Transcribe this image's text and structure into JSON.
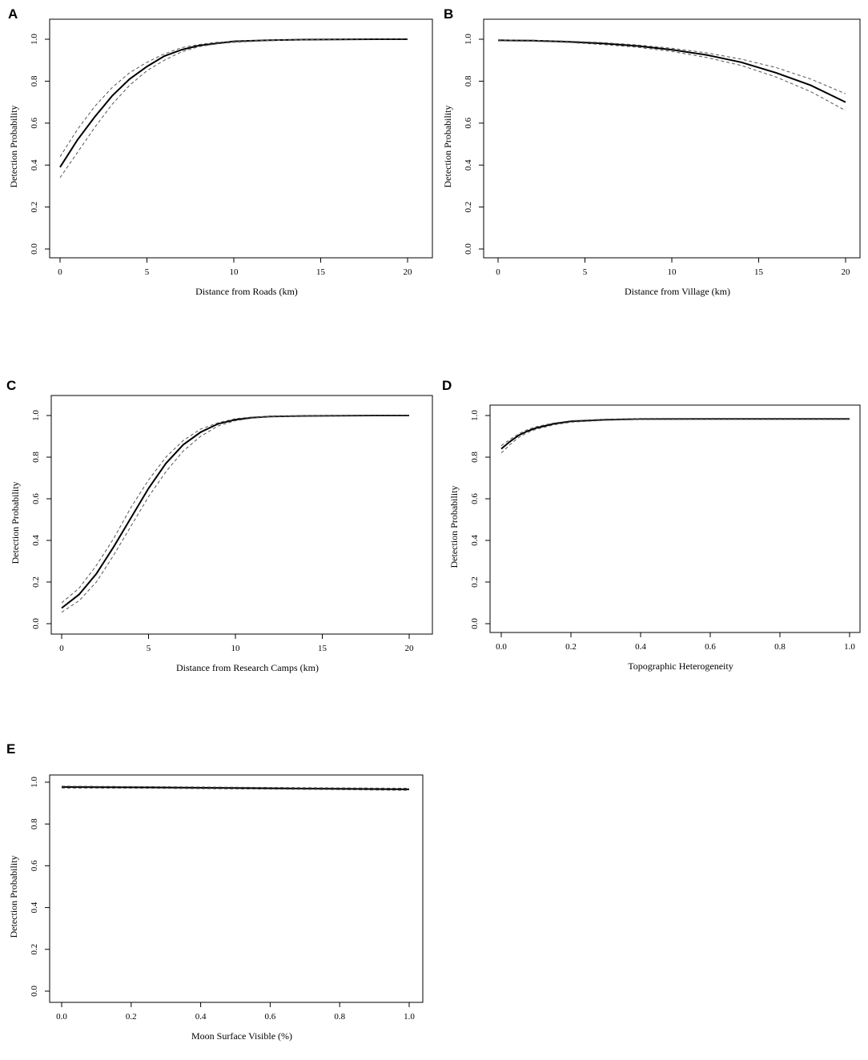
{
  "chart_data": [
    {
      "type": "line",
      "panel_label": "A",
      "xlabel": "Distance from Roads (km)",
      "ylabel": "Detection Probability",
      "xlim": [
        0,
        20
      ],
      "ylim": [
        0,
        1
      ],
      "xticks": [
        0,
        5,
        10,
        15,
        20
      ],
      "xtick_labels": [
        "0",
        "5",
        "10",
        "15",
        "20"
      ],
      "yticks": [
        0,
        0.2,
        0.4,
        0.6,
        0.8,
        1.0
      ],
      "ytick_labels": [
        "0.0",
        "0.2",
        "0.4",
        "0.6",
        "0.8",
        "1.0"
      ],
      "x": [
        0,
        1,
        2,
        3,
        4,
        5,
        6,
        7,
        8,
        9,
        10,
        12,
        14,
        16,
        18,
        20
      ],
      "series": [
        {
          "role": "estimate",
          "style": "solid",
          "values": [
            0.39,
            0.52,
            0.63,
            0.73,
            0.81,
            0.87,
            0.92,
            0.95,
            0.97,
            0.98,
            0.99,
            0.995,
            0.998,
            0.999,
            1.0,
            1.0
          ]
        },
        {
          "role": "upper",
          "style": "dashed",
          "values": [
            0.44,
            0.57,
            0.68,
            0.77,
            0.84,
            0.89,
            0.93,
            0.96,
            0.975,
            0.985,
            0.99,
            0.996,
            0.998,
            0.999,
            1.0,
            1.0
          ]
        },
        {
          "role": "lower",
          "style": "dashed",
          "values": [
            0.34,
            0.46,
            0.58,
            0.69,
            0.78,
            0.85,
            0.9,
            0.94,
            0.965,
            0.978,
            0.985,
            0.993,
            0.997,
            0.999,
            1.0,
            1.0
          ]
        }
      ]
    },
    {
      "type": "line",
      "panel_label": "B",
      "xlabel": "Distance from Village (km)",
      "ylabel": "Detection Probability",
      "xlim": [
        0,
        20
      ],
      "ylim": [
        0,
        1
      ],
      "xticks": [
        0,
        5,
        10,
        15,
        20
      ],
      "xtick_labels": [
        "0",
        "5",
        "10",
        "15",
        "20"
      ],
      "yticks": [
        0,
        0.2,
        0.4,
        0.6,
        0.8,
        1.0
      ],
      "ytick_labels": [
        "0.0",
        "0.2",
        "0.4",
        "0.6",
        "0.8",
        "1.0"
      ],
      "x": [
        0,
        2,
        4,
        6,
        8,
        10,
        12,
        14,
        16,
        18,
        20
      ],
      "series": [
        {
          "role": "estimate",
          "style": "solid",
          "values": [
            0.995,
            0.993,
            0.988,
            0.98,
            0.968,
            0.95,
            0.925,
            0.89,
            0.84,
            0.78,
            0.7
          ]
        },
        {
          "role": "upper",
          "style": "dashed",
          "values": [
            0.997,
            0.995,
            0.991,
            0.984,
            0.973,
            0.957,
            0.935,
            0.905,
            0.865,
            0.81,
            0.74
          ]
        },
        {
          "role": "lower",
          "style": "dashed",
          "values": [
            0.992,
            0.99,
            0.985,
            0.975,
            0.962,
            0.942,
            0.913,
            0.875,
            0.82,
            0.75,
            0.66
          ]
        }
      ]
    },
    {
      "type": "line",
      "panel_label": "C",
      "xlabel": "Distance from Research Camps (km)",
      "ylabel": "Detection Probability",
      "xlim": [
        0,
        20
      ],
      "ylim": [
        0,
        1
      ],
      "xticks": [
        0,
        5,
        10,
        15,
        20
      ],
      "xtick_labels": [
        "0",
        "5",
        "10",
        "15",
        "20"
      ],
      "yticks": [
        0,
        0.2,
        0.4,
        0.6,
        0.8,
        1.0
      ],
      "ytick_labels": [
        "0.0",
        "0.2",
        "0.4",
        "0.6",
        "0.8",
        "1.0"
      ],
      "x": [
        0,
        1,
        2,
        3,
        4,
        5,
        6,
        7,
        8,
        9,
        10,
        11,
        12,
        14,
        16,
        18,
        20
      ],
      "series": [
        {
          "role": "estimate",
          "style": "solid",
          "values": [
            0.075,
            0.14,
            0.24,
            0.37,
            0.51,
            0.65,
            0.77,
            0.86,
            0.92,
            0.96,
            0.98,
            0.99,
            0.995,
            0.998,
            0.999,
            1.0,
            1.0
          ]
        },
        {
          "role": "upper",
          "style": "dashed",
          "values": [
            0.1,
            0.17,
            0.28,
            0.41,
            0.56,
            0.69,
            0.8,
            0.88,
            0.935,
            0.965,
            0.985,
            0.993,
            0.996,
            0.999,
            1.0,
            1.0,
            1.0
          ]
        },
        {
          "role": "lower",
          "style": "dashed",
          "values": [
            0.055,
            0.11,
            0.2,
            0.33,
            0.47,
            0.61,
            0.73,
            0.83,
            0.9,
            0.95,
            0.975,
            0.988,
            0.994,
            0.998,
            0.999,
            1.0,
            1.0
          ]
        }
      ]
    },
    {
      "type": "line",
      "panel_label": "D",
      "xlabel": "Topographic Heterogeneity",
      "ylabel": "Detection Probability",
      "xlim": [
        0,
        1
      ],
      "ylim": [
        0,
        1
      ],
      "xticks": [
        0,
        0.2,
        0.4,
        0.6,
        0.8,
        1.0
      ],
      "xtick_labels": [
        "0.0",
        "0.2",
        "0.4",
        "0.6",
        "0.8",
        "1.0"
      ],
      "yticks": [
        0,
        0.2,
        0.4,
        0.6,
        0.8,
        1.0
      ],
      "ytick_labels": [
        "0.0",
        "0.2",
        "0.4",
        "0.6",
        "0.8",
        "1.0"
      ],
      "x": [
        0,
        0.025,
        0.05,
        0.075,
        0.1,
        0.15,
        0.2,
        0.3,
        0.4,
        0.6,
        0.8,
        1.0
      ],
      "series": [
        {
          "role": "estimate",
          "style": "solid",
          "values": [
            0.84,
            0.875,
            0.905,
            0.925,
            0.94,
            0.96,
            0.972,
            0.98,
            0.983,
            0.984,
            0.984,
            0.984
          ]
        },
        {
          "role": "upper",
          "style": "dashed",
          "values": [
            0.855,
            0.885,
            0.912,
            0.932,
            0.946,
            0.964,
            0.975,
            0.982,
            0.985,
            0.986,
            0.986,
            0.986
          ]
        },
        {
          "role": "lower",
          "style": "dashed",
          "values": [
            0.82,
            0.86,
            0.895,
            0.918,
            0.934,
            0.955,
            0.968,
            0.977,
            0.981,
            0.982,
            0.982,
            0.982
          ]
        }
      ]
    },
    {
      "type": "line",
      "panel_label": "E",
      "xlabel": "Moon Surface Visible (%)",
      "ylabel": "Detection Probability",
      "xlim": [
        0,
        1
      ],
      "ylim": [
        0,
        1
      ],
      "xticks": [
        0,
        0.2,
        0.4,
        0.6,
        0.8,
        1.0
      ],
      "xtick_labels": [
        "0.0",
        "0.2",
        "0.4",
        "0.6",
        "0.8",
        "1.0"
      ],
      "yticks": [
        0,
        0.2,
        0.4,
        0.6,
        0.8,
        1.0
      ],
      "ytick_labels": [
        "0.0",
        "0.2",
        "0.4",
        "0.6",
        "0.8",
        "1.0"
      ],
      "x": [
        0,
        0.25,
        0.5,
        0.75,
        1.0
      ],
      "series": [
        {
          "role": "estimate",
          "style": "solid",
          "values": [
            0.977,
            0.975,
            0.972,
            0.969,
            0.966
          ]
        },
        {
          "role": "upper",
          "style": "dashed",
          "values": [
            0.981,
            0.979,
            0.976,
            0.973,
            0.971
          ]
        },
        {
          "role": "lower",
          "style": "dashed",
          "values": [
            0.972,
            0.971,
            0.968,
            0.965,
            0.961
          ]
        }
      ]
    }
  ]
}
